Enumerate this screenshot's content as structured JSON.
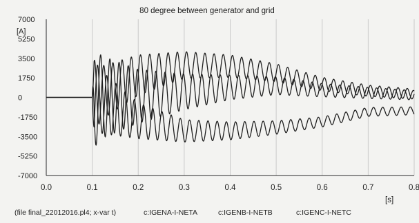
{
  "chart_data": {
    "type": "line",
    "title": "80 degree between generator and grid",
    "ylabel_unit": "[A]",
    "xlabel_unit": "[s]",
    "xlim": [
      0.0,
      0.8
    ],
    "ylim": [
      -7000,
      7000
    ],
    "grid": "vertical",
    "x_ticks": [
      "0.0",
      "0.1",
      "0.2",
      "0.3",
      "0.4",
      "0.5",
      "0.6",
      "0.7",
      "0.8"
    ],
    "y_ticks": [
      "7000",
      "5250",
      "3500",
      "1750",
      "0",
      "-1750",
      "-3500",
      "-5250",
      "-7000"
    ],
    "source_note": "(file final_22012016.pl4; x-var t)",
    "legend_labels": [
      "c:IGENA-I-NETA",
      "c:IGENB-I-NETB",
      "c:IGENC-I-NETC"
    ],
    "legend_placement": "bottom",
    "fault_time_s": 0.1,
    "oscillation_frequency_hz": 50,
    "series": [
      {
        "offset_points_s": [
          0.1,
          0.2,
          0.3,
          0.4,
          0.5,
          0.6,
          0.7,
          0.8
        ],
        "offset_values": [
          0,
          2000,
          2900,
          2800,
          2200,
          1200,
          600,
          300
        ],
        "amplitude_points_s": [
          0.1,
          0.12,
          0.2,
          0.3,
          0.4,
          0.5,
          0.6,
          0.7,
          0.8
        ],
        "amplitude_values": [
          3500,
          2400,
          1800,
          1200,
          1000,
          800,
          600,
          500,
          450
        ],
        "phase_deg": 0
      },
      {
        "offset_points_s": [
          0.1,
          0.2,
          0.3,
          0.4,
          0.5,
          0.6,
          0.7,
          0.8
        ],
        "offset_values": [
          0,
          100,
          500,
          900,
          1050,
          650,
          400,
          200
        ],
        "amplitude_points_s": [
          0.1,
          0.12,
          0.2,
          0.3,
          0.4,
          0.5,
          0.6,
          0.7,
          0.8
        ],
        "amplitude_values": [
          4700,
          3700,
          2400,
          1600,
          1100,
          800,
          600,
          500,
          420
        ],
        "phase_deg": 120
      },
      {
        "offset_points_s": [
          0.1,
          0.2,
          0.3,
          0.4,
          0.5,
          0.6,
          0.7,
          0.8
        ],
        "offset_values": [
          0,
          -2100,
          -3000,
          -3000,
          -2700,
          -2200,
          -1300,
          -1200
        ],
        "amplitude_points_s": [
          0.1,
          0.12,
          0.2,
          0.3,
          0.4,
          0.5,
          0.6,
          0.7,
          0.8
        ],
        "amplitude_values": [
          3600,
          2800,
          1600,
          1000,
          800,
          600,
          450,
          400,
          350
        ],
        "phase_deg": 240
      }
    ],
    "colors": {
      "trace": "#1f1f1f",
      "grid": "#c9c9c9",
      "axis": "#2a2a2a"
    }
  }
}
